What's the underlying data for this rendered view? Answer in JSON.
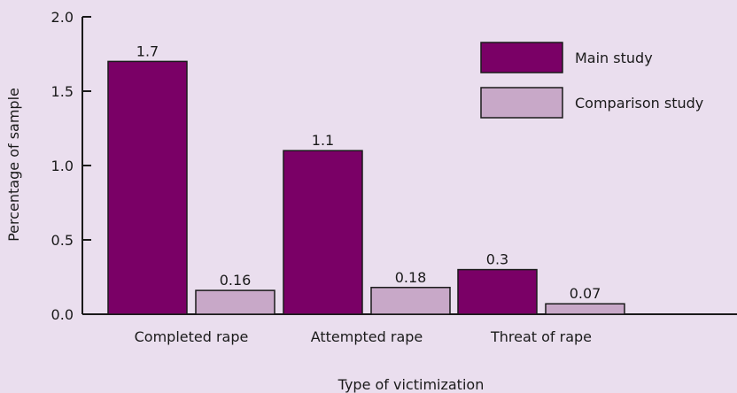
{
  "chart_data": {
    "type": "bar",
    "title": "",
    "xlabel": "Type of victimization",
    "ylabel": "Percentage of sample",
    "categories": [
      "Completed rape",
      "Attempted rape",
      "Threat of rape"
    ],
    "series": [
      {
        "name": "Main study",
        "values": [
          1.7,
          1.1,
          0.3
        ],
        "labels": [
          "1.7",
          "1.1",
          "0.3"
        ],
        "color": "#7a0066"
      },
      {
        "name": "Comparison study",
        "values": [
          0.16,
          0.18,
          0.07
        ],
        "labels": [
          "0.16",
          "0.18",
          "0.07"
        ],
        "color": "#c8a8c8"
      }
    ],
    "ylim": [
      0,
      2.0
    ],
    "yticks": [
      0.0,
      0.5,
      1.0,
      1.5,
      2.0
    ],
    "ytick_labels": [
      "0.0",
      "0.5",
      "1.0",
      "1.5",
      "2.0"
    ],
    "grid": false,
    "legend": "top-right",
    "background_color": "#eadeee"
  }
}
